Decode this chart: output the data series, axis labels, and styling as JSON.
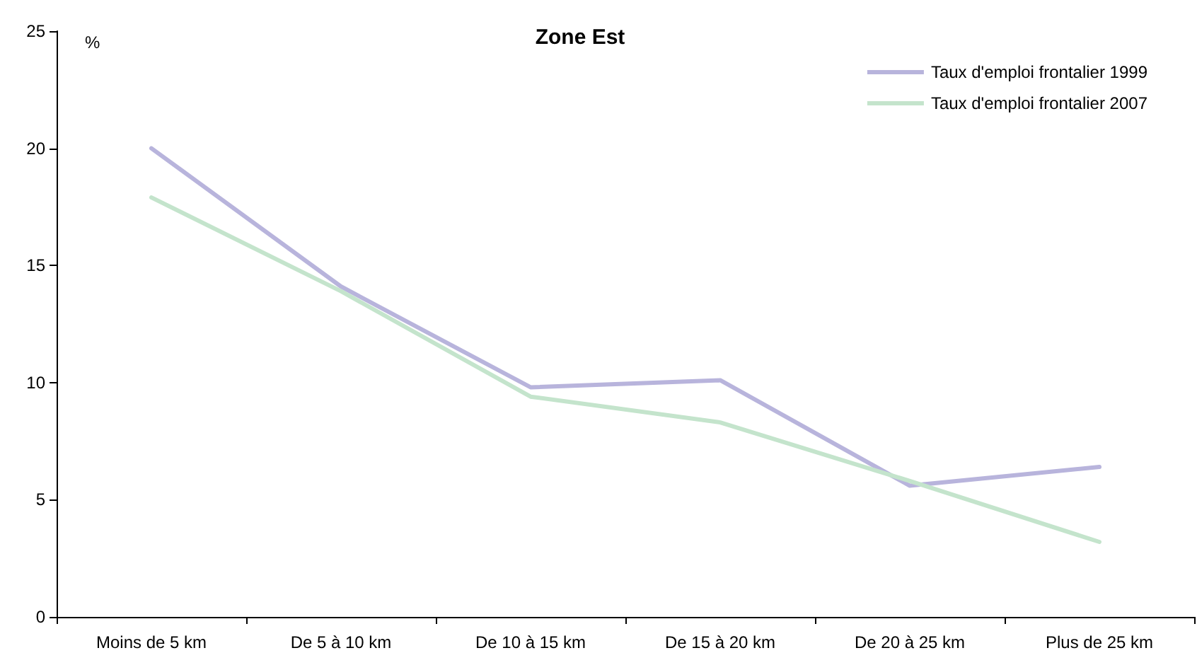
{
  "chart_data": {
    "type": "line",
    "title": "Zone Est",
    "ylabel": "%",
    "categories": [
      "Moins de 5 km",
      "De 5 à 10 km",
      "De 10 à 15 km",
      "De 15 à 20 km",
      "De 20 à 25 km",
      "Plus de 25 km"
    ],
    "series": [
      {
        "name": "Taux d'emploi frontalier 1999",
        "color": "#b8b4dc",
        "values": [
          20.0,
          14.1,
          9.8,
          10.1,
          5.6,
          6.4
        ]
      },
      {
        "name": "Taux d'emploi frontalier 2007",
        "color": "#c4e4cc",
        "values": [
          17.9,
          13.9,
          9.4,
          8.3,
          5.8,
          3.2
        ]
      }
    ],
    "ylim": [
      0,
      25
    ],
    "yticks": [
      0,
      5,
      10,
      15,
      20,
      25
    ],
    "grid": false,
    "legend": "top right",
    "marker": "none",
    "line_style": "solid"
  }
}
